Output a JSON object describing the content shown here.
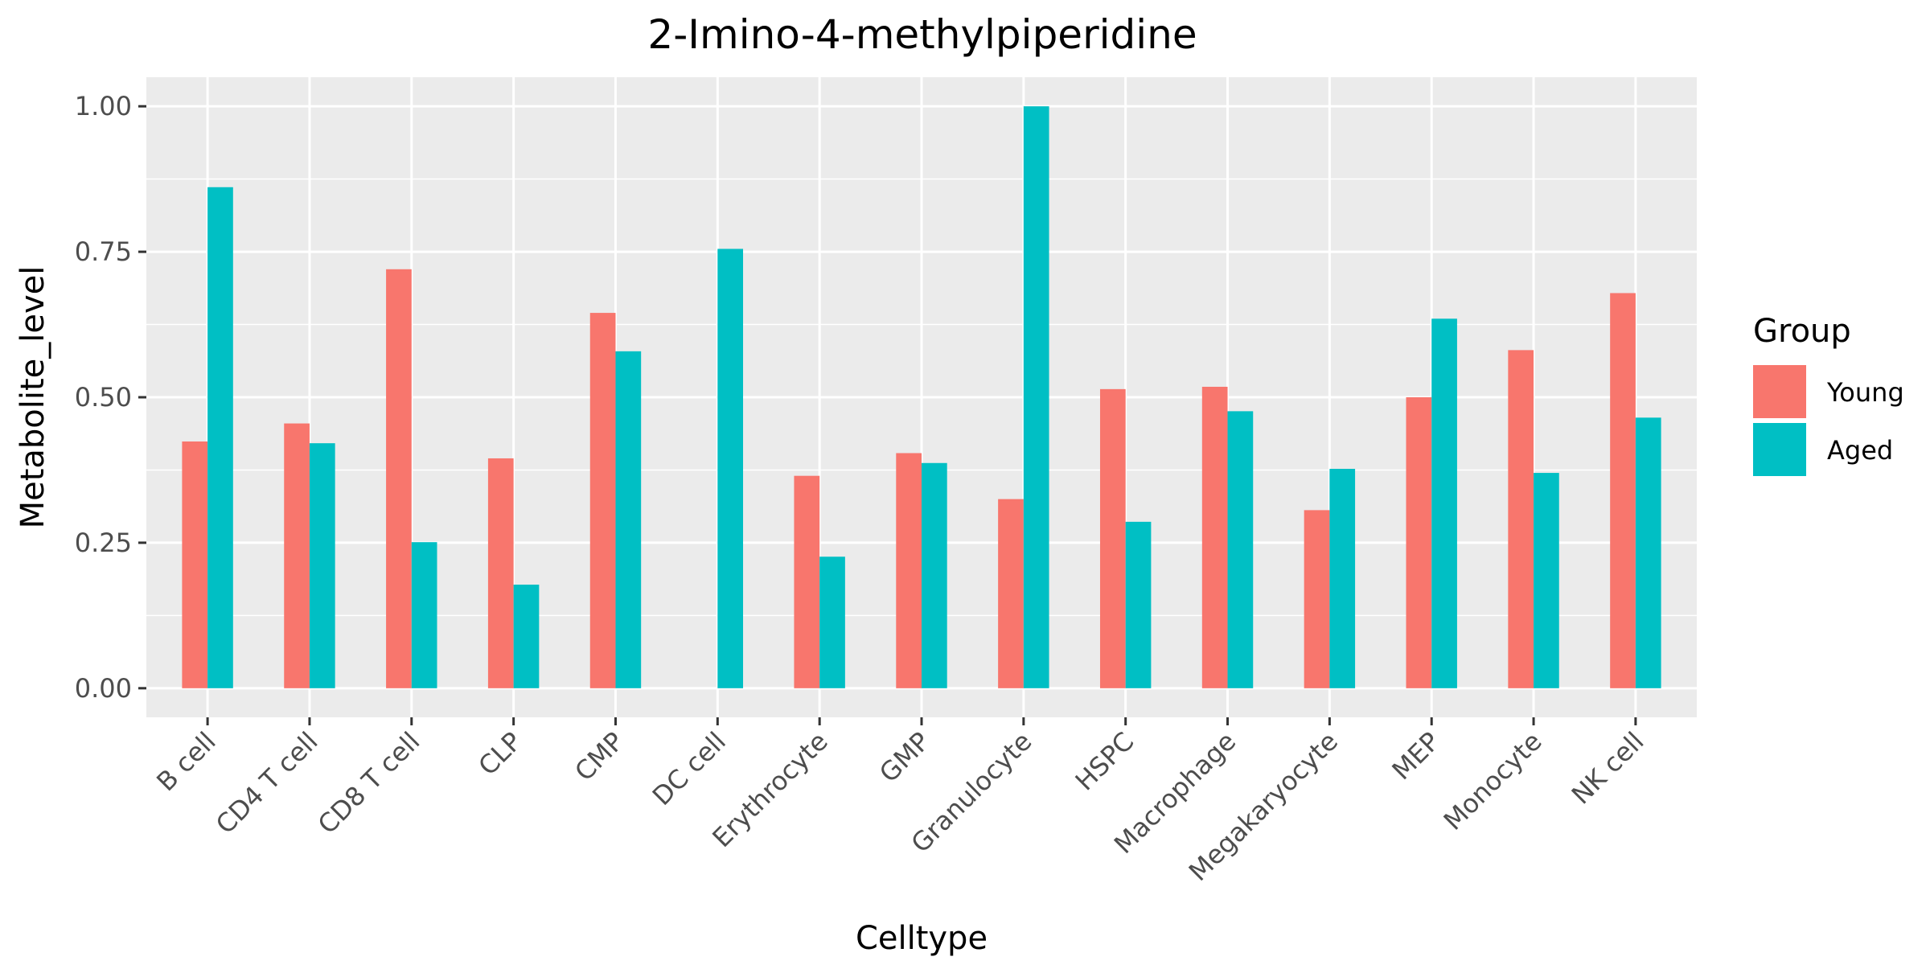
{
  "chart_data": {
    "type": "bar",
    "title": "2-Imino-4-methylpiperidine",
    "xlabel": "Celltype",
    "ylabel": "Metabolite_level",
    "categories": [
      "B cell",
      "CD4 T cell",
      "CD8 T cell",
      "CLP",
      "CMP",
      "DC cell",
      "Erythrocyte",
      "GMP",
      "Granulocyte",
      "HSPC",
      "Macrophage",
      "Megakaryocyte",
      "MEP",
      "Monocyte",
      "NK cell"
    ],
    "series": [
      {
        "name": "Young",
        "color": "#F8766D",
        "values": [
          0.424,
          0.455,
          0.72,
          0.395,
          0.645,
          null,
          0.365,
          0.404,
          0.325,
          0.514,
          0.518,
          0.306,
          0.5,
          0.581,
          0.679
        ]
      },
      {
        "name": "Aged",
        "color": "#00BFC4",
        "values": [
          0.861,
          0.421,
          0.251,
          0.178,
          0.579,
          0.755,
          0.226,
          0.387,
          1.0,
          0.286,
          0.476,
          0.377,
          0.635,
          0.37,
          0.465
        ]
      }
    ],
    "ylim": [
      -0.05,
      1.05
    ],
    "yticks": [
      "0.00",
      "0.25",
      "0.50",
      "0.75",
      "1.00"
    ],
    "ytick_values": [
      0,
      0.25,
      0.5,
      0.75,
      1.0
    ],
    "legend": {
      "title": "Group",
      "position": "right"
    },
    "grid": true,
    "panel_color": "#EBEBEB"
  }
}
